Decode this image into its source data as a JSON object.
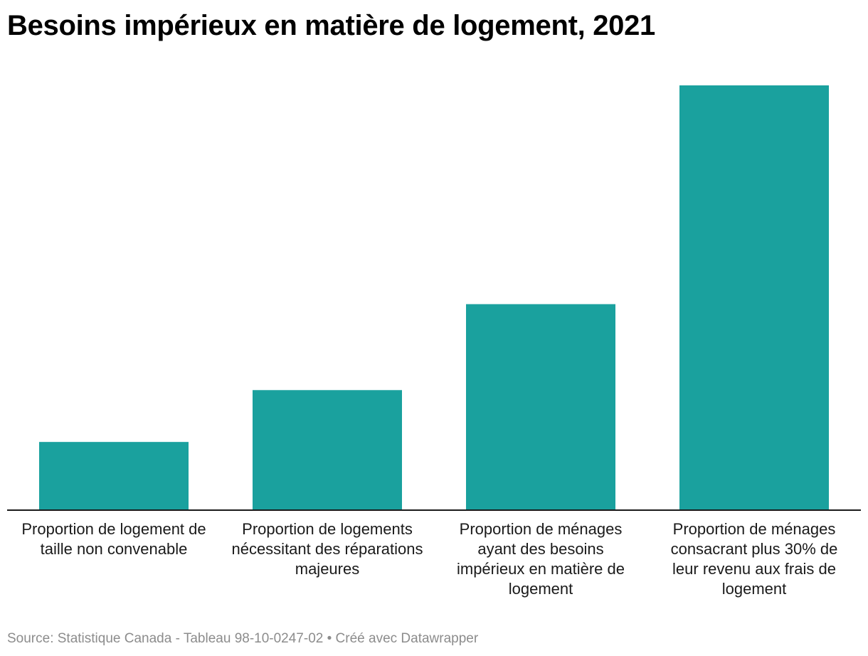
{
  "chart_data": {
    "type": "bar",
    "title": "Besoins impérieux en matière de logement, 2021",
    "categories": [
      "Proportion de logement de taille non convenable",
      "Proportion de logements nécessitant des réparations majeures",
      "Proportion de ménages ayant des besoins impérieux en matière de logement",
      "Proportion de ménages consacrant plus 30% de leur revenu aux frais de logement"
    ],
    "values": [
      9.6,
      16.9,
      29.0,
      59.8
    ],
    "ylim": [
      0,
      60
    ],
    "xlabel": "",
    "ylabel": "",
    "grid": false,
    "legend": "none",
    "bar_color": "#1aa19e"
  },
  "footer": {
    "source": "Source: Statistique Canada - Tableau 98-10-0247-02 • Créé avec Datawrapper"
  }
}
